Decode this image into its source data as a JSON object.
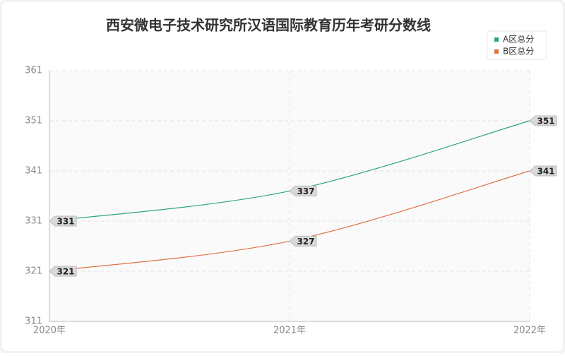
{
  "chart_data": {
    "type": "line",
    "title": "西安微电子技术研究所汉语国际教育历年考研分数线",
    "categories": [
      "2020年",
      "2021年",
      "2022年"
    ],
    "series": [
      {
        "name": "A区总分",
        "color": "#2ca57f",
        "values": [
          331,
          337,
          351
        ]
      },
      {
        "name": "B区总分",
        "color": "#e0703f",
        "values": [
          321,
          327,
          341
        ]
      }
    ],
    "ylim": [
      311,
      361
    ],
    "yticks": [
      311,
      321,
      331,
      341,
      351,
      361
    ],
    "grid": true,
    "legend": "top-right"
  }
}
